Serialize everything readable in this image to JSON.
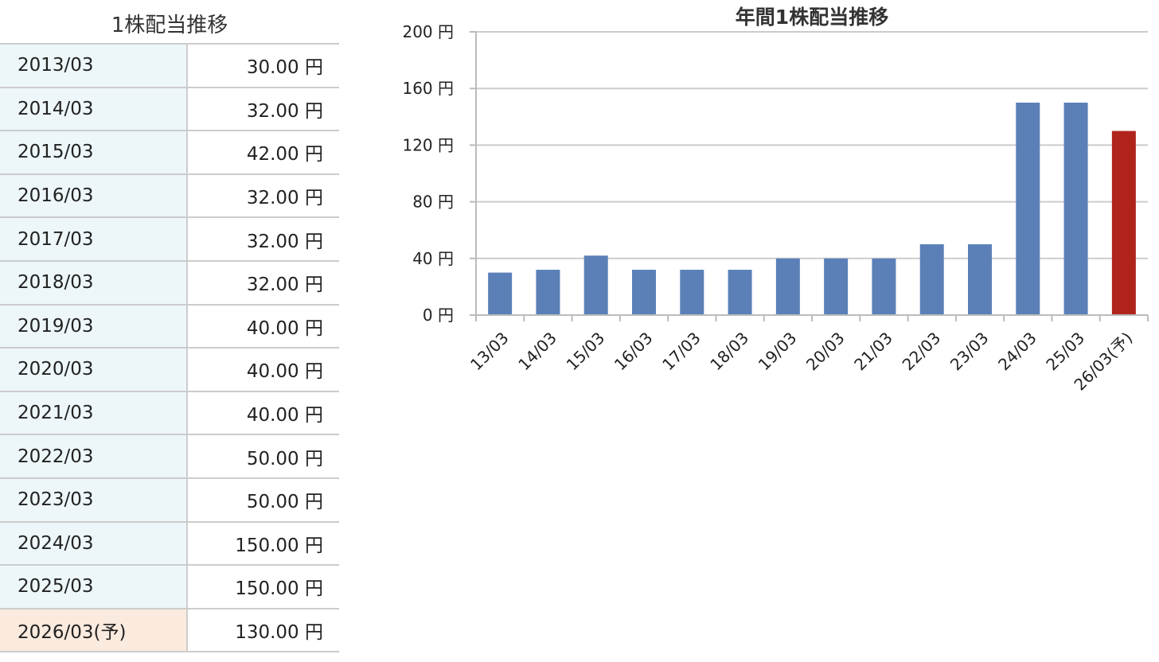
{
  "table": {
    "title": "1株配当推移",
    "rows": [
      {
        "year": "2013/03",
        "amount": "30.00 円",
        "forecast": false
      },
      {
        "year": "2014/03",
        "amount": "32.00 円",
        "forecast": false
      },
      {
        "year": "2015/03",
        "amount": "42.00 円",
        "forecast": false
      },
      {
        "year": "2016/03",
        "amount": "32.00 円",
        "forecast": false
      },
      {
        "year": "2017/03",
        "amount": "32.00 円",
        "forecast": false
      },
      {
        "year": "2018/03",
        "amount": "32.00 円",
        "forecast": false
      },
      {
        "year": "2019/03",
        "amount": "40.00 円",
        "forecast": false
      },
      {
        "year": "2020/03",
        "amount": "40.00 円",
        "forecast": false
      },
      {
        "year": "2021/03",
        "amount": "40.00 円",
        "forecast": false
      },
      {
        "year": "2022/03",
        "amount": "50.00 円",
        "forecast": false
      },
      {
        "year": "2023/03",
        "amount": "50.00 円",
        "forecast": false
      },
      {
        "year": "2024/03",
        "amount": "150.00 円",
        "forecast": false
      },
      {
        "year": "2025/03",
        "amount": "150.00 円",
        "forecast": false
      },
      {
        "year": "2026/03(予)",
        "amount": "130.00 円",
        "forecast": true
      }
    ],
    "colors": {
      "year_bg": "#edf6f9",
      "forecast_bg": "#fbeade",
      "border": "#cccccc"
    }
  },
  "chart_data": {
    "type": "bar",
    "title": "年間1株配当推移",
    "categories": [
      "13/03",
      "14/03",
      "15/03",
      "16/03",
      "17/03",
      "18/03",
      "19/03",
      "20/03",
      "21/03",
      "22/03",
      "23/03",
      "24/03",
      "25/03",
      "26/03(予)"
    ],
    "values": [
      30,
      32,
      42,
      32,
      32,
      32,
      40,
      40,
      40,
      50,
      50,
      150,
      150,
      130
    ],
    "forecast_index": 13,
    "ylim": [
      0,
      200
    ],
    "y_ticks": [
      0,
      40,
      80,
      120,
      160,
      200
    ],
    "y_tick_suffix": " 円",
    "xlabel": "",
    "ylabel": "",
    "grid": true,
    "colors": {
      "bar": "#5b80b8",
      "forecast_bar": "#b0241c",
      "grid": "#cccccc",
      "axis": "#bbbbbb"
    }
  }
}
